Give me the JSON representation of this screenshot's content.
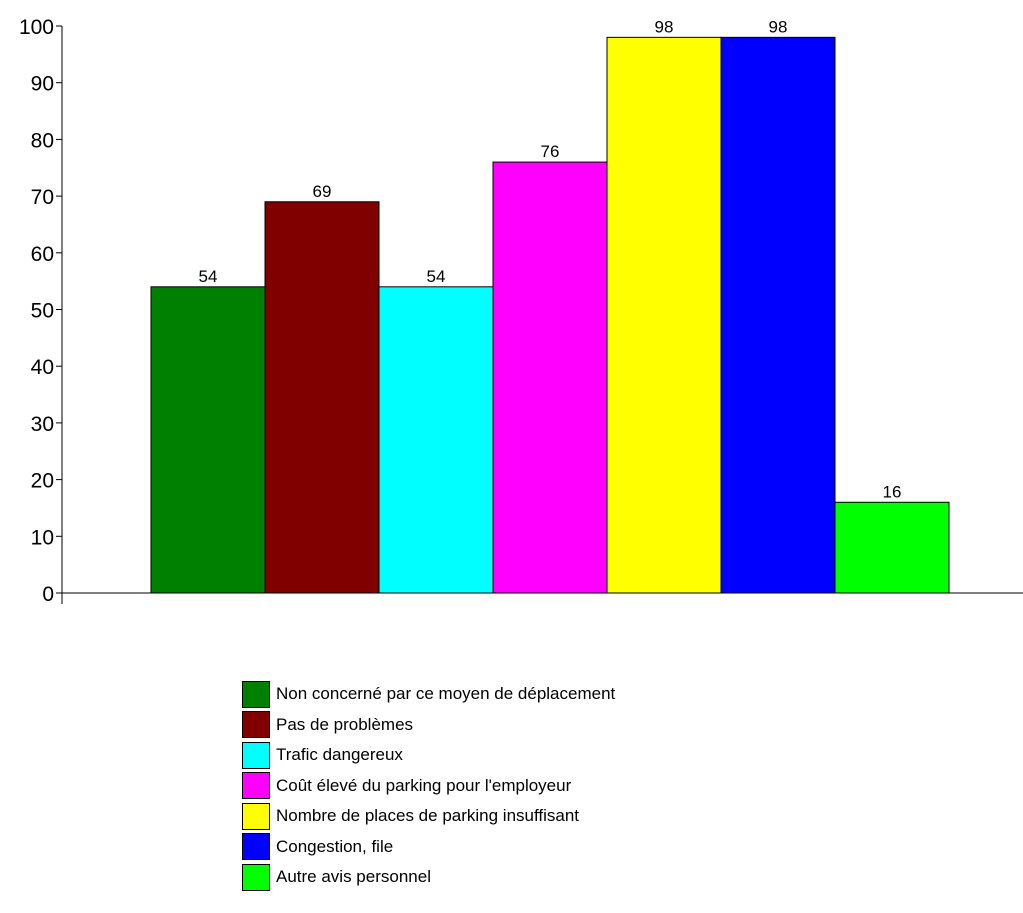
{
  "chart_data": {
    "type": "bar",
    "title": "",
    "xlabel": "",
    "ylabel": "",
    "ylim": [
      0,
      100
    ],
    "yticks": [
      0,
      10,
      20,
      30,
      40,
      50,
      60,
      70,
      80,
      90,
      100
    ],
    "grid": false,
    "legend_position": "bottom",
    "series": [
      {
        "name": "Non concerné par ce moyen de déplacement",
        "value": 54,
        "color": "#008000"
      },
      {
        "name": "Pas de problèmes",
        "value": 69,
        "color": "#800000"
      },
      {
        "name": "Trafic dangereux",
        "value": 54,
        "color": "#00FFFF"
      },
      {
        "name": "Coût élevé du parking pour l'employeur",
        "value": 76,
        "color": "#FF00FF"
      },
      {
        "name": "Nombre de places de parking insuffisant",
        "value": 98,
        "color": "#FFFF00"
      },
      {
        "name": "Congestion, file",
        "value": 98,
        "color": "#0000FF"
      },
      {
        "name": "Autre avis personnel",
        "value": 16,
        "color": "#00FF00"
      }
    ]
  }
}
